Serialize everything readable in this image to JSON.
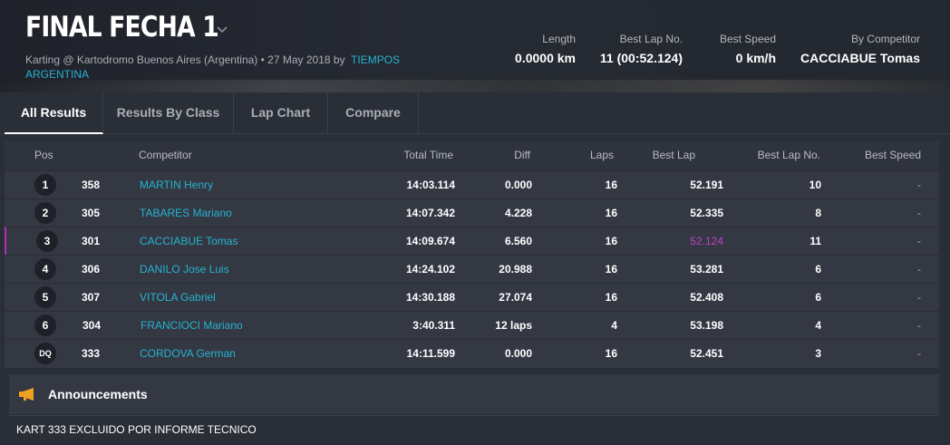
{
  "event": {
    "title": "FINAL FECHA 1",
    "subtitle_prefix": "Karting @ Kartodromo Buenos Aires (Argentina) • 27 May 2018 by",
    "subtitle_link": "TIEMPOS ARGENTINA"
  },
  "stats": [
    {
      "label": "Length",
      "value": "0.0000 km"
    },
    {
      "label": "Best Lap No.",
      "value": "11 (00:52.124)"
    },
    {
      "label": "Best Speed",
      "value": "0 km/h"
    },
    {
      "label": "By Competitor",
      "value": "CACCIABUE Tomas"
    }
  ],
  "tabs": [
    "All Results",
    "Results By Class",
    "Lap Chart",
    "Compare"
  ],
  "table": {
    "headers": [
      "Pos",
      "Competitor",
      "Total Time",
      "Diff",
      "Laps",
      "Best Lap",
      "Best Lap No.",
      "Best Speed"
    ],
    "rows": [
      {
        "pos": "1",
        "num": "358",
        "name": "MARTIN Henry",
        "total": "14:03.114",
        "diff": "0.000",
        "laps": "16",
        "best": "52.191",
        "bestno": "10",
        "speed": "-"
      },
      {
        "pos": "2",
        "num": "305",
        "name": "TABARES Mariano",
        "total": "14:07.342",
        "diff": "4.228",
        "laps": "16",
        "best": "52.335",
        "bestno": "8",
        "speed": "-"
      },
      {
        "pos": "3",
        "num": "301",
        "name": "CACCIABUE Tomas",
        "total": "14:09.674",
        "diff": "6.560",
        "laps": "16",
        "best": "52.124",
        "bestno": "11",
        "speed": "-"
      },
      {
        "pos": "4",
        "num": "306",
        "name": "DANILO Jose Luis",
        "total": "14:24.102",
        "diff": "20.988",
        "laps": "16",
        "best": "53.281",
        "bestno": "6",
        "speed": "-"
      },
      {
        "pos": "5",
        "num": "307",
        "name": "VITOLA Gabriel",
        "total": "14:30.188",
        "diff": "27.074",
        "laps": "16",
        "best": "52.408",
        "bestno": "6",
        "speed": "-"
      },
      {
        "pos": "6",
        "num": "304",
        "name": "FRANCIOCI Mariano",
        "total": "3:40.311",
        "diff": "12 laps",
        "laps": "4",
        "best": "53.198",
        "bestno": "4",
        "speed": "-"
      },
      {
        "pos": "DQ",
        "num": "333",
        "name": "CORDOVA German",
        "total": "14:11.599",
        "diff": "0.000",
        "laps": "16",
        "best": "52.451",
        "bestno": "3",
        "speed": "-"
      }
    ]
  },
  "announcements": {
    "title": "Announcements",
    "text": "KART 333 EXCLUIDO POR INFORME TECNICO"
  },
  "colors": {
    "accent": "#26b3d0",
    "best_lap": "#c040c0",
    "megaphone": "#f0a020"
  }
}
